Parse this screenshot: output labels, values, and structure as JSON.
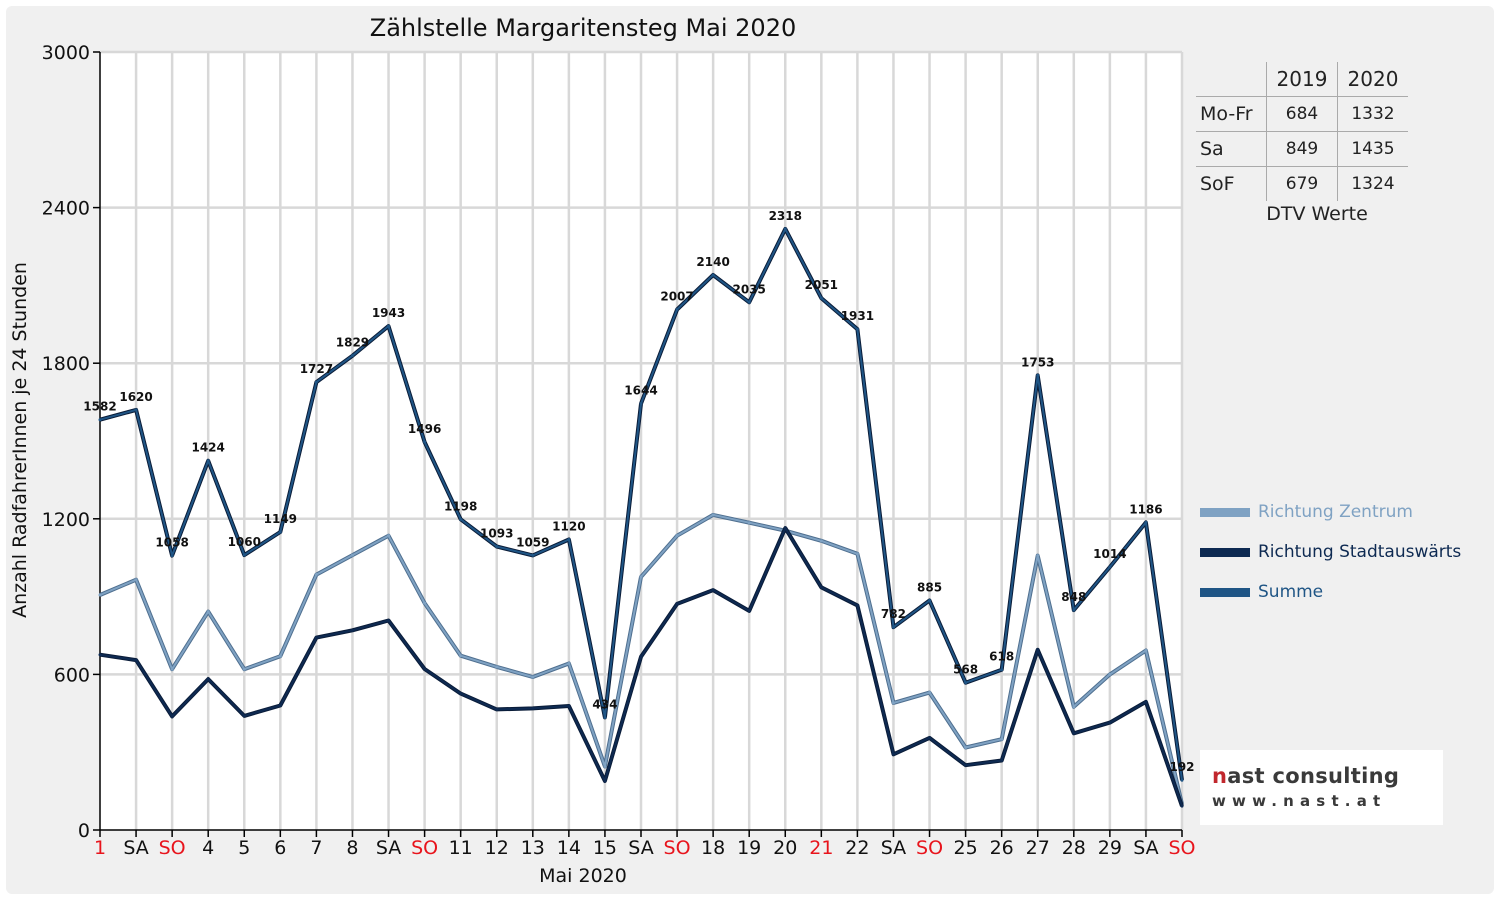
{
  "chart_data": {
    "type": "line",
    "title": "Zählstelle Margaritensteg Mai 2020",
    "xlabel": "Mai 2020",
    "ylabel": "Anzahl RadfahrerInnen je 24 Stunden",
    "ylim": [
      0,
      3000
    ],
    "yticks": [
      0,
      600,
      1200,
      1800,
      2400,
      3000
    ],
    "grid": true,
    "legend_position": "right",
    "categories": [
      "1",
      "SA",
      "SO",
      "4",
      "5",
      "6",
      "7",
      "8",
      "SA",
      "SO",
      "11",
      "12",
      "13",
      "14",
      "15",
      "SA",
      "SO",
      "18",
      "19",
      "20",
      "21",
      "22",
      "SA",
      "SO",
      "25",
      "26",
      "27",
      "28",
      "29",
      "SA",
      "SO"
    ],
    "red_categories": [
      0,
      2,
      9,
      16,
      20,
      23,
      30
    ],
    "series": [
      {
        "name": "Richtung Zentrum",
        "color": "#7fa2c3",
        "values": [
          906,
          965,
          620,
          842,
          620,
          670,
          985,
          1060,
          1135,
          875,
          672,
          629,
          590,
          642,
          245,
          976,
          1135,
          1215,
          1185,
          1154,
          1115,
          1065,
          490,
          530,
          318,
          350,
          1058,
          475,
          600,
          692,
          100
        ]
      },
      {
        "name": "Richtung Stadtauswärts",
        "color": "#0e2a52",
        "values": [
          676,
          655,
          438,
          582,
          440,
          480,
          742,
          770,
          808,
          621,
          526,
          465,
          469,
          478,
          189,
          668,
          872,
          925,
          845,
          1164,
          936,
          866,
          292,
          355,
          250,
          268,
          695,
          373,
          414,
          494,
          92
        ]
      },
      {
        "name": "Summe",
        "color": "#1f5585",
        "values": [
          1582,
          1620,
          1058,
          1424,
          1060,
          1149,
          1727,
          1829,
          1943,
          1496,
          1198,
          1093,
          1059,
          1120,
          434,
          1644,
          2007,
          2140,
          2035,
          2318,
          2051,
          1931,
          782,
          885,
          568,
          618,
          1753,
          848,
          1014,
          1186,
          192
        ]
      }
    ],
    "data_labels": [
      "1582",
      "1620",
      "1058",
      "1424",
      "1060",
      "1149",
      "1727",
      "1829",
      "1943",
      "1496",
      "1198",
      "1093",
      "1059",
      "1120",
      "434",
      "1644",
      "2007",
      "2140",
      "2035",
      "2318",
      "2051",
      "1931",
      "782",
      "885",
      "568",
      "618",
      "1753",
      "848",
      "1014",
      "1186",
      "192"
    ]
  },
  "dtv_table": {
    "headers": [
      "",
      "2019",
      "2020"
    ],
    "rows": [
      {
        "label": "Mo-Fr",
        "y2019": "684",
        "y2020": "1332"
      },
      {
        "label": "Sa",
        "y2019": "849",
        "y2020": "1435"
      },
      {
        "label": "SoF",
        "y2019": "679",
        "y2020": "1324"
      }
    ],
    "caption": "DTV Werte"
  },
  "legend": [
    {
      "label": "Richtung Zentrum",
      "color": "#7fa2c3"
    },
    {
      "label": "Richtung Stadtauswärts",
      "color": "#0e2a52"
    },
    {
      "label": "Summe",
      "color": "#1f5585"
    }
  ],
  "logo": {
    "name_part1": "n",
    "name_part2": "ast consulting",
    "url": "www.nast.at"
  }
}
